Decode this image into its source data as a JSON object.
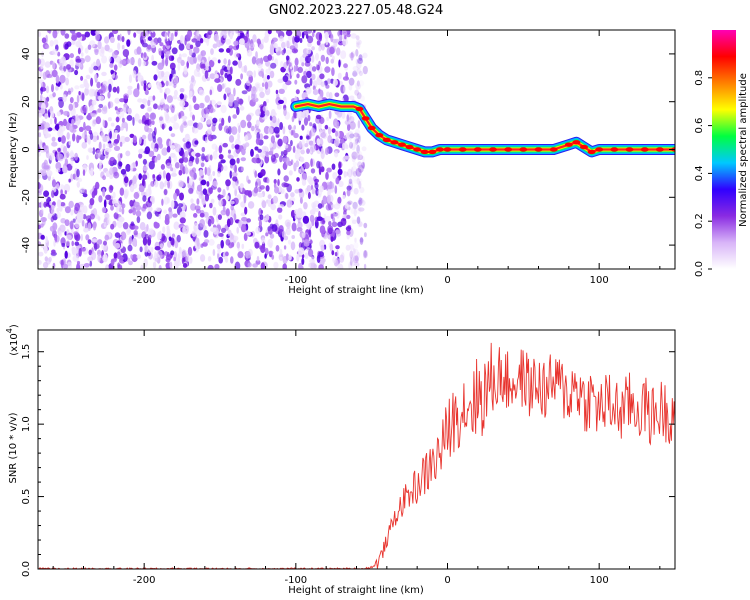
{
  "chart_data": [
    {
      "type": "heatmap",
      "title": "GN02.2023.227.05.48.G24",
      "xlabel": "Height of straight line (km)",
      "ylabel": "Frequency (Hz)",
      "xlim": [
        -270,
        150
      ],
      "ylim": [
        -50,
        50
      ],
      "xticks": [
        -200,
        -100,
        0,
        100
      ],
      "yticks": [
        -40,
        -20,
        0,
        20,
        40
      ],
      "noise_region_x": [
        -270,
        -58
      ],
      "signal_track": {
        "x": [
          -100,
          -92,
          -85,
          -78,
          -70,
          -62,
          -58,
          -54,
          -50,
          -45,
          -40,
          -35,
          -30,
          -25,
          -20,
          -15,
          -10,
          -5,
          0,
          10,
          20,
          30,
          40,
          50,
          60,
          70,
          80,
          85,
          90,
          95,
          100,
          110,
          120,
          130,
          140,
          150
        ],
        "y": [
          18,
          19,
          18,
          19,
          18,
          18,
          17,
          13,
          9,
          6,
          4,
          3,
          2,
          1,
          0,
          -1,
          -1,
          0,
          0,
          0,
          0,
          0,
          0,
          0,
          0,
          0,
          2,
          3,
          1,
          -1,
          0,
          0,
          0,
          0,
          0,
          0
        ]
      },
      "colorbar": {
        "label": "Normalized spectral amplitude",
        "ticks": [
          0.0,
          0.2,
          0.4,
          0.6,
          0.8
        ],
        "range": [
          0,
          1
        ],
        "colors": [
          "#ffffff",
          "#d8b4f8",
          "#8a2be2",
          "#3000ff",
          "#00c8ff",
          "#00ff40",
          "#ffff00",
          "#ff8000",
          "#ff0000",
          "#ff00b4"
        ]
      }
    },
    {
      "type": "line",
      "xlabel": "Height of straight line (km)",
      "ylabel": "SNR (10 * v/v)",
      "ymultiplier": "(x10",
      "ymultiplier_exp": "4",
      "ymultiplier_close": ")",
      "xlim": [
        -270,
        150
      ],
      "ylim": [
        0,
        1.65
      ],
      "xticks": [
        -200,
        -100,
        0,
        100
      ],
      "yticks": [
        0.0,
        0.5,
        1.0,
        1.5
      ],
      "series": [
        {
          "color": "#e8342e",
          "x": [
            -270,
            -250,
            -230,
            -210,
            -190,
            -170,
            -150,
            -130,
            -110,
            -90,
            -70,
            -55,
            -48,
            -44,
            -40,
            -35,
            -30,
            -25,
            -20,
            -15,
            -10,
            -5,
            0,
            5,
            10,
            15,
            20,
            25,
            30,
            35,
            40,
            45,
            50,
            55,
            60,
            65,
            70,
            75,
            80,
            85,
            90,
            95,
            100,
            105,
            110,
            115,
            120,
            125,
            130,
            135,
            140,
            145,
            150
          ],
          "y": [
            0.0,
            0.0,
            0.0,
            0.0,
            0.0,
            0.0,
            0.0,
            0.0,
            0.0,
            0.0,
            0.0,
            0.0,
            0.02,
            0.08,
            0.2,
            0.35,
            0.45,
            0.52,
            0.58,
            0.65,
            0.72,
            0.8,
            0.95,
            1.05,
            1.12,
            1.15,
            1.18,
            1.22,
            1.3,
            1.35,
            1.28,
            1.3,
            1.32,
            1.25,
            1.28,
            1.22,
            1.3,
            1.25,
            1.2,
            1.28,
            1.15,
            1.18,
            1.1,
            1.15,
            1.12,
            1.08,
            1.15,
            1.1,
            1.12,
            1.05,
            1.1,
            1.08,
            1.1
          ]
        }
      ]
    }
  ]
}
